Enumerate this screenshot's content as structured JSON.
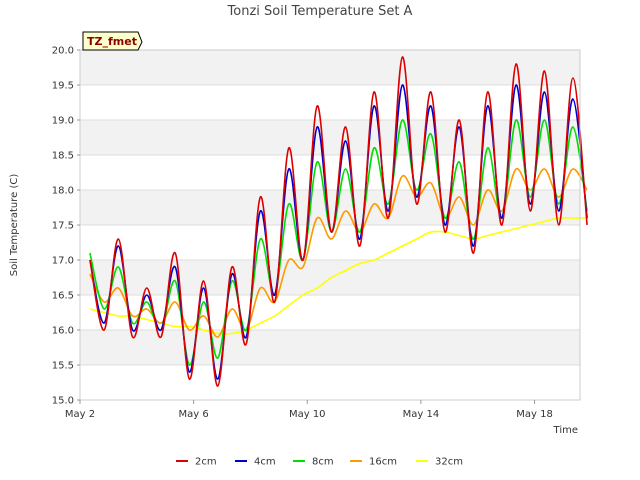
{
  "chart_data": {
    "type": "line",
    "title": "Tonzi Soil Temperature Set A",
    "xlabel": "Time",
    "ylabel": "Soil Temperature (C)",
    "tag": "TZ_fmet",
    "xlim": [
      0,
      17.6
    ],
    "ylim": [
      15.0,
      20.0
    ],
    "x_ticks": [
      {
        "value": 0,
        "label": "May 2"
      },
      {
        "value": 4,
        "label": "May 6"
      },
      {
        "value": 8,
        "label": "May 10"
      },
      {
        "value": 12,
        "label": "May 14"
      },
      {
        "value": 16,
        "label": "May 18"
      }
    ],
    "y_ticks": [
      "15.0",
      "15.5",
      "16.0",
      "16.5",
      "17.0",
      "17.5",
      "18.0",
      "18.5",
      "19.0",
      "19.5",
      "20.0"
    ],
    "grid": true,
    "legend_position": "bottom",
    "x_start": 0.35,
    "x_step": 0.5,
    "series": [
      {
        "name": "2cm",
        "color": "#dd0000",
        "values": [
          17.0,
          16.0,
          17.3,
          15.9,
          16.6,
          15.9,
          17.1,
          15.3,
          16.7,
          15.2,
          16.9,
          15.8,
          17.9,
          16.4,
          18.6,
          17.0,
          19.2,
          17.4,
          18.9,
          17.2,
          19.4,
          17.6,
          19.9,
          17.8,
          19.4,
          17.4,
          19.0,
          17.1,
          19.4,
          17.5,
          19.8,
          17.7,
          19.7,
          17.5,
          19.6,
          17.5
        ]
      },
      {
        "name": "4cm",
        "color": "#0000cc",
        "values": [
          17.0,
          16.1,
          17.2,
          16.0,
          16.5,
          16.0,
          16.9,
          15.4,
          16.6,
          15.3,
          16.8,
          15.9,
          17.7,
          16.5,
          18.3,
          17.0,
          18.9,
          17.4,
          18.7,
          17.3,
          19.2,
          17.7,
          19.5,
          17.9,
          19.2,
          17.5,
          18.9,
          17.2,
          19.2,
          17.6,
          19.5,
          17.8,
          19.4,
          17.7,
          19.3,
          17.6
        ]
      },
      {
        "name": "8cm",
        "color": "#00dd00",
        "values": [
          17.1,
          16.3,
          16.9,
          16.1,
          16.4,
          16.0,
          16.7,
          15.5,
          16.4,
          15.6,
          16.7,
          16.0,
          17.3,
          16.5,
          17.8,
          17.0,
          18.4,
          17.4,
          18.3,
          17.4,
          18.6,
          17.8,
          19.0,
          18.0,
          18.8,
          17.6,
          18.4,
          17.3,
          18.6,
          17.6,
          19.0,
          17.9,
          19.0,
          17.8,
          18.9,
          17.7
        ]
      },
      {
        "name": "16cm",
        "color": "#ff9900",
        "values": [
          16.8,
          16.4,
          16.6,
          16.2,
          16.3,
          16.1,
          16.4,
          16.0,
          16.2,
          15.9,
          16.3,
          16.0,
          16.6,
          16.4,
          17.0,
          16.9,
          17.6,
          17.3,
          17.7,
          17.4,
          17.8,
          17.6,
          18.2,
          17.9,
          18.1,
          17.6,
          17.9,
          17.5,
          18.0,
          17.7,
          18.3,
          18.0,
          18.3,
          17.9,
          18.3,
          18.0
        ]
      },
      {
        "name": "32cm",
        "color": "#ffff00",
        "values": [
          16.3,
          16.25,
          16.2,
          16.2,
          16.15,
          16.1,
          16.05,
          16.05,
          16.0,
          15.95,
          15.95,
          16.0,
          16.1,
          16.2,
          16.35,
          16.5,
          16.6,
          16.75,
          16.85,
          16.95,
          17.0,
          17.1,
          17.2,
          17.3,
          17.4,
          17.4,
          17.35,
          17.3,
          17.35,
          17.4,
          17.45,
          17.5,
          17.55,
          17.6,
          17.6,
          17.6
        ]
      }
    ]
  }
}
